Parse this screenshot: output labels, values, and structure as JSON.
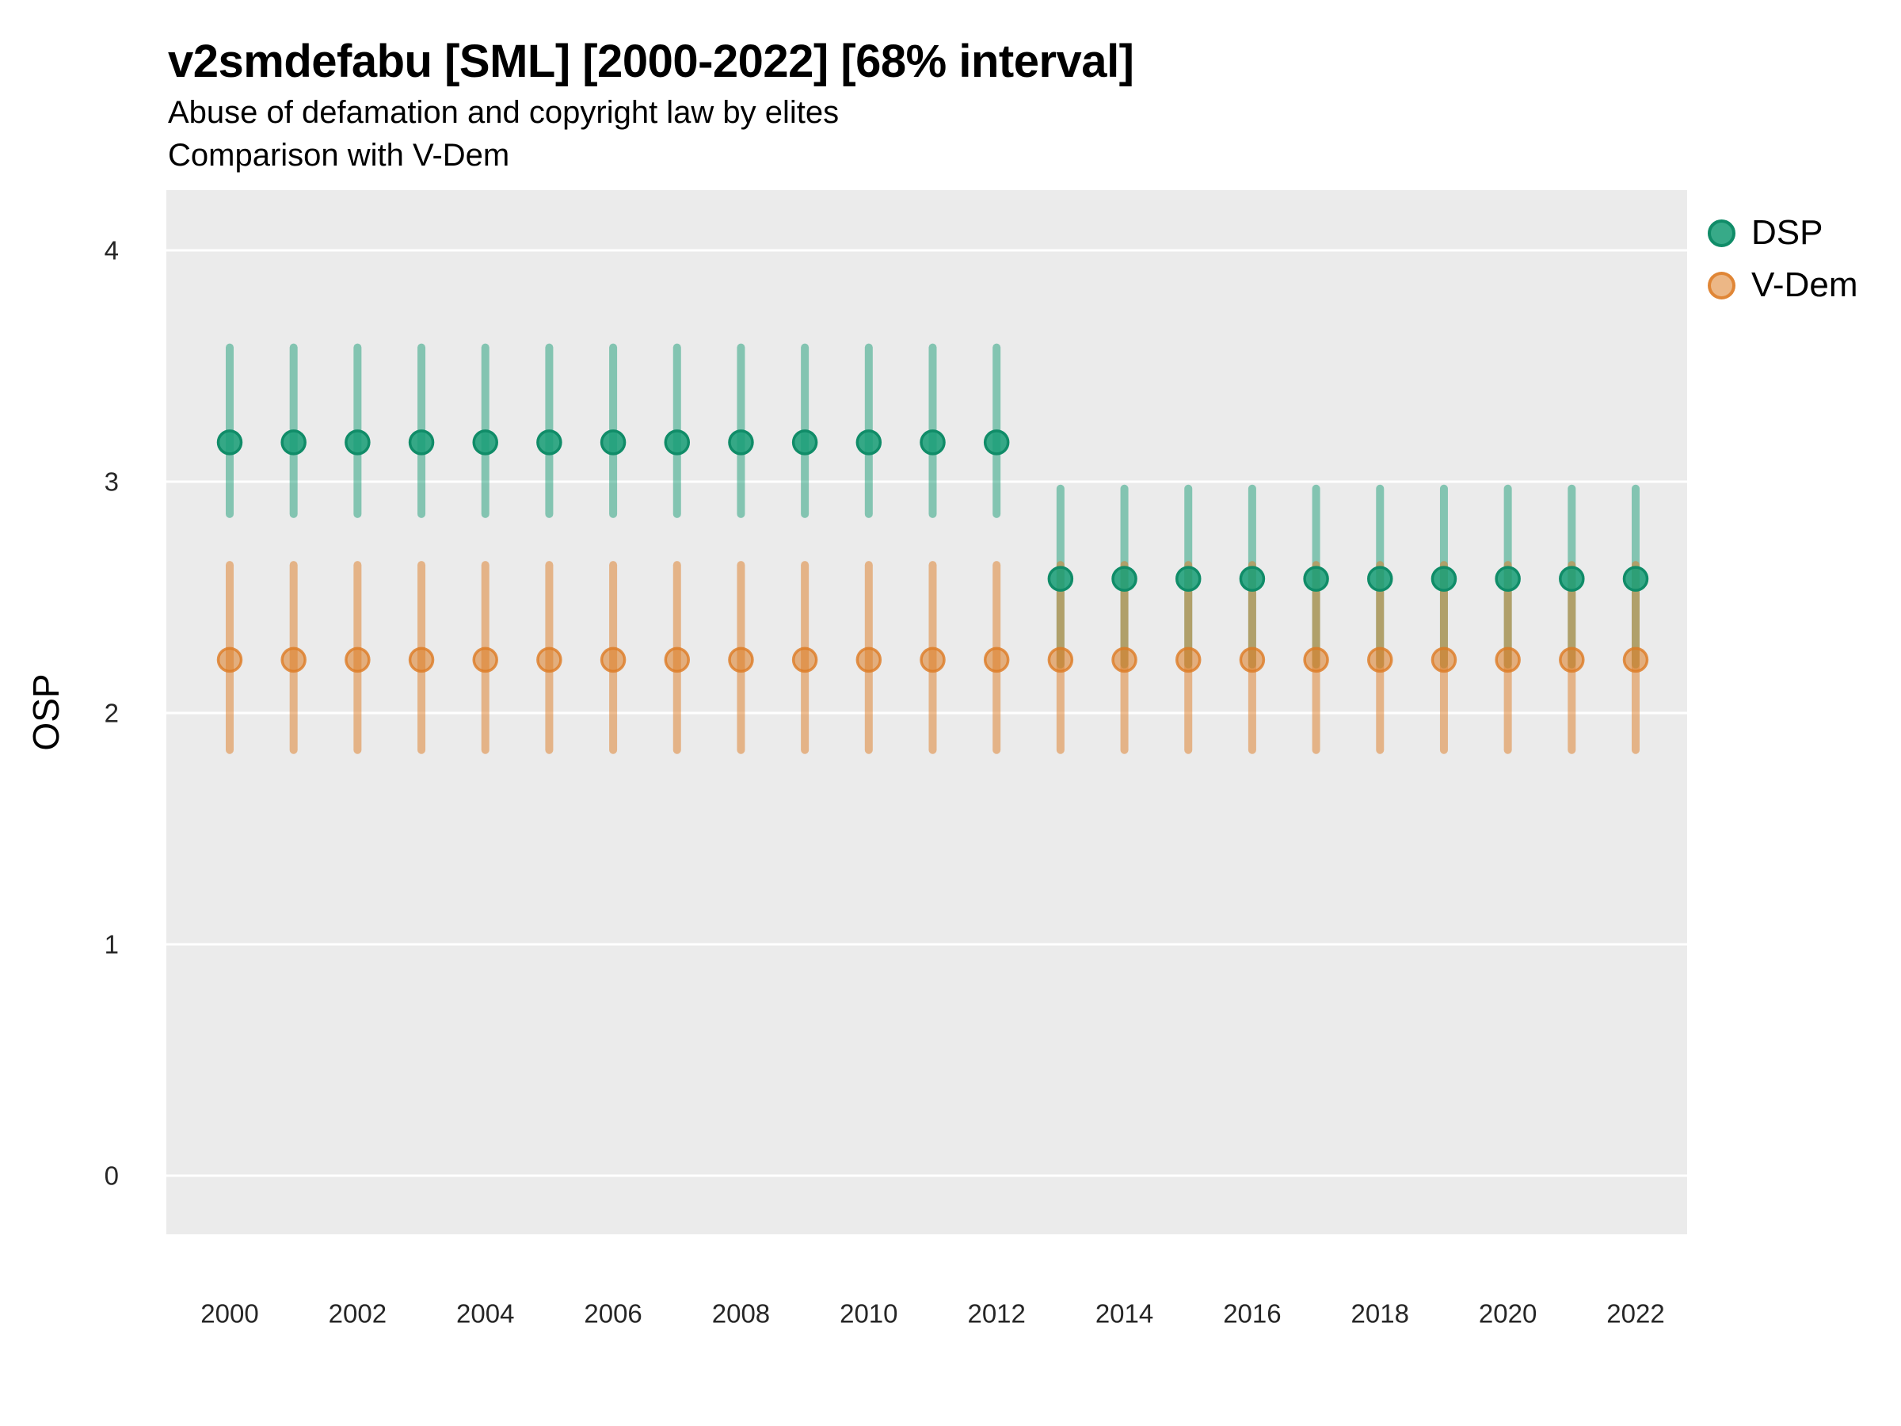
{
  "header": {
    "title": "v2smdefabu [SML] [2000-2022] [68% interval]",
    "subtitle_line1": "Abuse of defamation and copyright law by elites",
    "subtitle_line2": "Comparison with V-Dem"
  },
  "chart_data": {
    "type": "scatter",
    "title": "v2smdefabu [SML] [2000-2022] [68% interval]",
    "xlabel": "",
    "ylabel": "OSP",
    "ylim": [
      0,
      4
    ],
    "yticks": [
      0,
      1,
      2,
      3,
      4
    ],
    "xticks": [
      2000,
      2002,
      2004,
      2006,
      2008,
      2010,
      2012,
      2014,
      2016,
      2018,
      2020,
      2022
    ],
    "x": [
      2000,
      2001,
      2002,
      2003,
      2004,
      2005,
      2006,
      2007,
      2008,
      2009,
      2010,
      2011,
      2012,
      2013,
      2014,
      2015,
      2016,
      2017,
      2018,
      2019,
      2020,
      2021,
      2022
    ],
    "interval": "68%",
    "grid": "major-horizontal-only",
    "legend_position": "right",
    "panel_background": "#EBEBEB",
    "gridline_color": "#FFFFFF",
    "series": [
      {
        "name": "DSP",
        "color": "#1B9E77",
        "bar_color": "rgba(27,158,119,0.5)",
        "point_fill": "rgba(27,158,119,0.88)",
        "point_stroke": "rgba(16,140,104,1)",
        "means": [
          3.17,
          3.17,
          3.17,
          3.17,
          3.17,
          3.17,
          3.17,
          3.17,
          3.17,
          3.17,
          3.17,
          3.17,
          3.17,
          2.58,
          2.58,
          2.58,
          2.58,
          2.58,
          2.58,
          2.58,
          2.58,
          2.58,
          2.58
        ],
        "lo": [
          2.86,
          2.86,
          2.86,
          2.86,
          2.86,
          2.86,
          2.86,
          2.86,
          2.86,
          2.86,
          2.86,
          2.86,
          2.86,
          2.21,
          2.21,
          2.21,
          2.21,
          2.21,
          2.21,
          2.21,
          2.21,
          2.21,
          2.21
        ],
        "hi": [
          3.58,
          3.58,
          3.58,
          3.58,
          3.58,
          3.58,
          3.58,
          3.58,
          3.58,
          3.58,
          3.58,
          3.58,
          3.58,
          2.97,
          2.97,
          2.97,
          2.97,
          2.97,
          2.97,
          2.97,
          2.97,
          2.97,
          2.97
        ]
      },
      {
        "name": "V-Dem",
        "color": "#DD7B23",
        "bar_color": "rgba(221,123,35,0.5)",
        "point_fill": "rgba(221,123,35,0.55)",
        "point_stroke": "rgba(221,123,35,0.8)",
        "means": [
          2.23,
          2.23,
          2.23,
          2.23,
          2.23,
          2.23,
          2.23,
          2.23,
          2.23,
          2.23,
          2.23,
          2.23,
          2.23,
          2.23,
          2.23,
          2.23,
          2.23,
          2.23,
          2.23,
          2.23,
          2.23,
          2.23,
          2.23
        ],
        "lo": [
          1.84,
          1.84,
          1.84,
          1.84,
          1.84,
          1.84,
          1.84,
          1.84,
          1.84,
          1.84,
          1.84,
          1.84,
          1.84,
          1.84,
          1.84,
          1.84,
          1.84,
          1.84,
          1.84,
          1.84,
          1.84,
          1.84,
          1.84
        ],
        "hi": [
          2.64,
          2.64,
          2.64,
          2.64,
          2.64,
          2.64,
          2.64,
          2.64,
          2.64,
          2.64,
          2.64,
          2.64,
          2.64,
          2.64,
          2.64,
          2.64,
          2.64,
          2.64,
          2.64,
          2.64,
          2.64,
          2.64,
          2.64
        ]
      }
    ]
  }
}
